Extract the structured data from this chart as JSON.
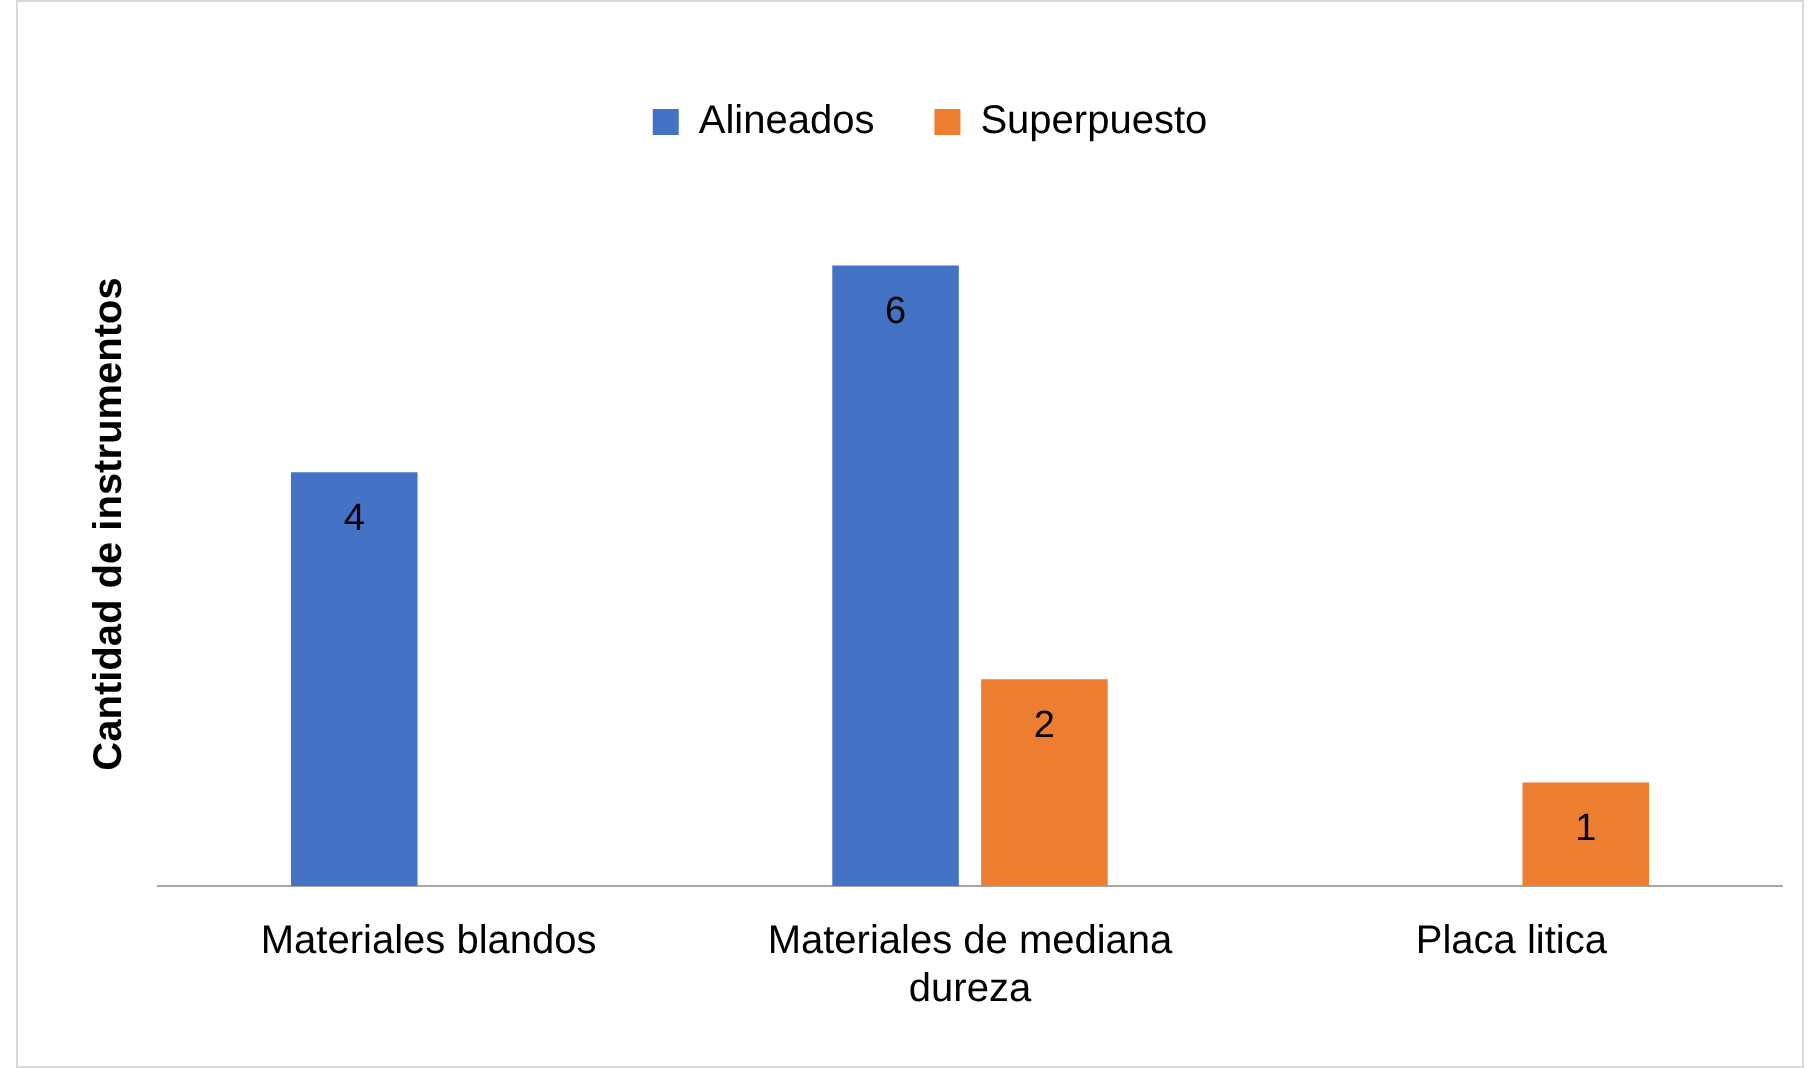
{
  "chart_data": {
    "type": "bar",
    "ylabel": "Cantidad de instrumentos",
    "categories": [
      "Materiales blandos",
      "Materiales de mediana dureza",
      "Placa litica"
    ],
    "series": [
      {
        "name": "Alineados",
        "color": "#4472c4",
        "values": [
          4,
          6,
          null
        ]
      },
      {
        "name": "Superpuesto",
        "color": "#ed7d31",
        "values": [
          null,
          2,
          1
        ]
      }
    ],
    "data_labels": true,
    "legend": "top",
    "grid": false
  }
}
